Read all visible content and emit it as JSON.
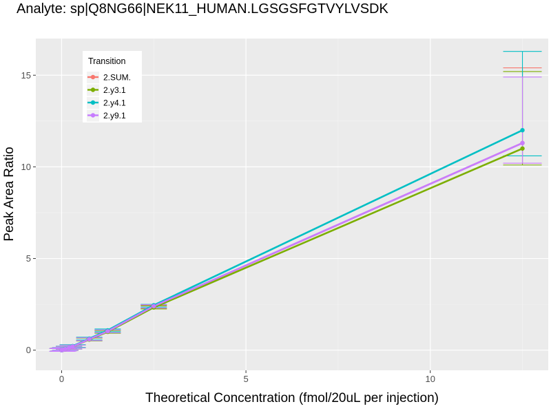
{
  "chart_data": {
    "type": "line",
    "title": "Analyte: sp|Q8NG66|NEK11_HUMAN.LGSGSFGTVYLVSDK",
    "xlabel": "Theoretical Concentration (fmol/20uL per injection)",
    "ylabel": "Peak Area Ratio",
    "xlim": [
      -0.7,
      13.2
    ],
    "ylim": [
      -1.1,
      17.0
    ],
    "x_ticks": [
      0,
      5,
      10
    ],
    "y_ticks": [
      0,
      5,
      10,
      15
    ],
    "grid": true,
    "legend": {
      "title": "Transition",
      "position": "top-left"
    },
    "x": [
      0,
      0.02,
      0.05,
      0.1,
      0.2,
      0.3,
      0.75,
      1.25,
      2.5,
      12.5
    ],
    "series": [
      {
        "name": "2.SUM.",
        "color": "#F8766D",
        "values": [
          0.0,
          0.01,
          0.03,
          0.06,
          0.13,
          0.2,
          0.59,
          1.02,
          2.39,
          11.3
        ],
        "error_low": [
          null,
          null,
          null,
          null,
          null,
          null,
          null,
          null,
          2.28,
          10.2
        ],
        "error_high": [
          null,
          null,
          null,
          null,
          null,
          null,
          null,
          null,
          2.45,
          15.4
        ]
      },
      {
        "name": "2.y3.1",
        "color": "#7CAE00",
        "values": [
          0.0,
          0.01,
          0.03,
          0.06,
          0.13,
          0.2,
          0.58,
          1.0,
          2.33,
          11.0
        ],
        "error_low": [
          null,
          null,
          null,
          null,
          null,
          null,
          null,
          null,
          2.25,
          10.1
        ],
        "error_high": [
          null,
          null,
          null,
          null,
          null,
          null,
          null,
          null,
          2.42,
          15.2
        ]
      },
      {
        "name": "2.y4.1",
        "color": "#00BFC4",
        "values": [
          0.0,
          0.01,
          0.03,
          0.07,
          0.14,
          0.22,
          0.63,
          1.08,
          2.45,
          12.0
        ],
        "error_low": [
          null,
          null,
          null,
          null,
          null,
          null,
          null,
          null,
          2.35,
          10.6
        ],
        "error_high": [
          null,
          null,
          null,
          null,
          null,
          null,
          null,
          null,
          2.5,
          16.3
        ]
      },
      {
        "name": "2.y9.1",
        "color": "#C77CFF",
        "values": [
          0.0,
          0.01,
          0.03,
          0.06,
          0.13,
          0.2,
          0.6,
          1.03,
          2.4,
          11.3
        ],
        "error_low": [
          null,
          null,
          null,
          null,
          null,
          null,
          null,
          null,
          2.3,
          10.2
        ],
        "error_high": [
          null,
          null,
          null,
          null,
          null,
          null,
          null,
          null,
          2.48,
          14.9
        ]
      }
    ]
  }
}
